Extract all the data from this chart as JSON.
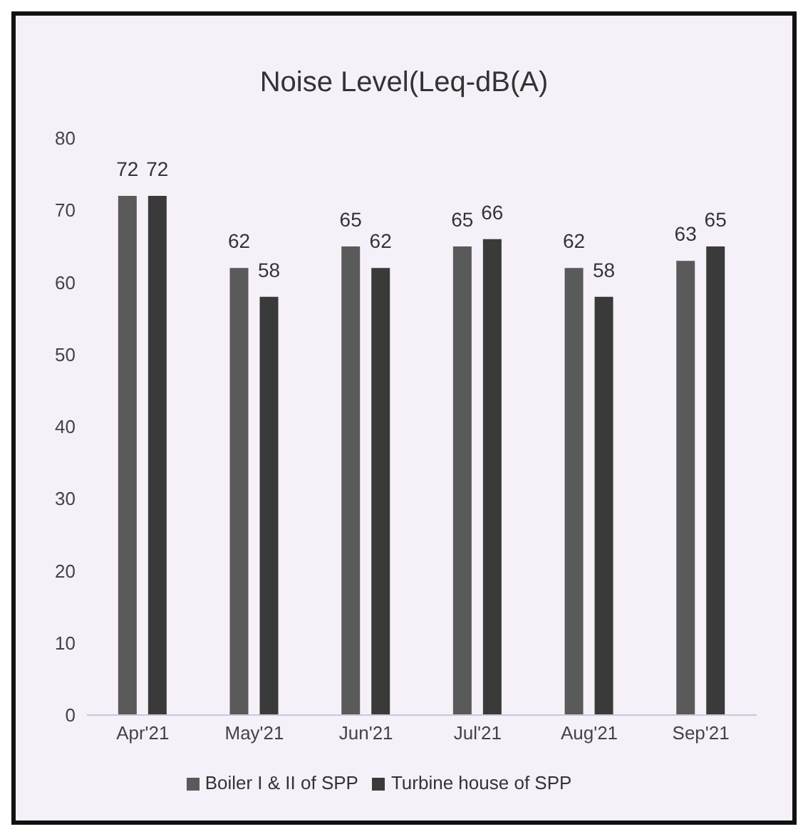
{
  "chart_data": {
    "type": "bar",
    "title": "Noise Level(Leq-dB(A)",
    "categories": [
      "Apr'21",
      "May'21",
      "Jun'21",
      "Jul'21",
      "Aug'21",
      "Sep'21"
    ],
    "series": [
      {
        "name": "Boiler I & II of SPP",
        "color": "#5a5a5a",
        "values": [
          72,
          62,
          65,
          65,
          62,
          63
        ]
      },
      {
        "name": "Turbine house of SPP",
        "color": "#3a3a3a",
        "values": [
          72,
          58,
          62,
          66,
          58,
          65
        ]
      }
    ],
    "ylim": [
      0,
      80
    ],
    "yticks": [
      0,
      10,
      20,
      30,
      40,
      50,
      60,
      70,
      80
    ],
    "data_labels": true,
    "legend": "bottom",
    "grid": false
  }
}
